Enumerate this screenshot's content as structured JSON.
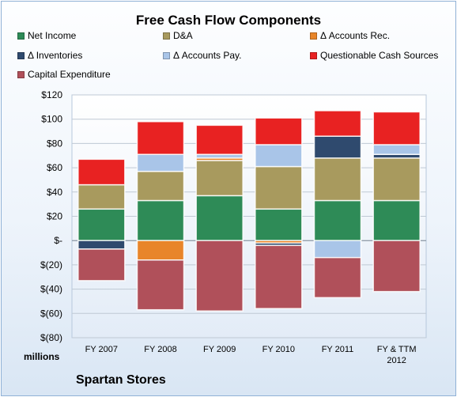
{
  "chart_data": {
    "type": "bar",
    "stacked": true,
    "title": "Free Cash Flow Components",
    "categories": [
      "FY 2007",
      "FY 2008",
      "FY 2009",
      "FY 2010",
      "FY 2011",
      "FY & TTM 2012"
    ],
    "ylim": [
      -80,
      120
    ],
    "yticks": [
      -80,
      -60,
      -40,
      -20,
      0,
      20,
      40,
      60,
      80,
      100,
      120
    ],
    "ytick_labels": [
      "$(80)",
      "$(60)",
      "$(40)",
      "$(20)",
      "$-",
      "$20",
      "$40",
      "$60",
      "$80",
      "$100",
      "$120"
    ],
    "units_label": "millions",
    "legend_position": "top",
    "grid": true,
    "series": [
      {
        "name": "Net Income",
        "color": "#2e8b57",
        "values": [
          26,
          33,
          37,
          26,
          33,
          33
        ]
      },
      {
        "name": "D&A",
        "color": "#a89a5e",
        "values": [
          20,
          24,
          29,
          35,
          35,
          35
        ]
      },
      {
        "name": "Δ Accounts Rec.",
        "color": "#e8852a",
        "values": [
          0,
          -16,
          2,
          -2,
          0,
          0
        ]
      },
      {
        "name": "Δ Inventories",
        "color": "#2f4a6e",
        "values": [
          -7,
          0,
          0,
          -2,
          18,
          3
        ]
      },
      {
        "name": "Δ Accounts Pay.",
        "color": "#a9c5e8",
        "values": [
          0,
          14,
          3,
          18,
          -14,
          8
        ]
      },
      {
        "name": "Questionable Cash Sources",
        "color": "#e82222",
        "values": [
          21,
          27,
          24,
          22,
          21,
          27
        ]
      },
      {
        "name": "Capital Expenditure",
        "color": "#b0505a",
        "values": [
          -26,
          -41,
          -58,
          -52,
          -33,
          -42
        ]
      }
    ]
  },
  "footer": {
    "company": "Spartan Stores"
  }
}
